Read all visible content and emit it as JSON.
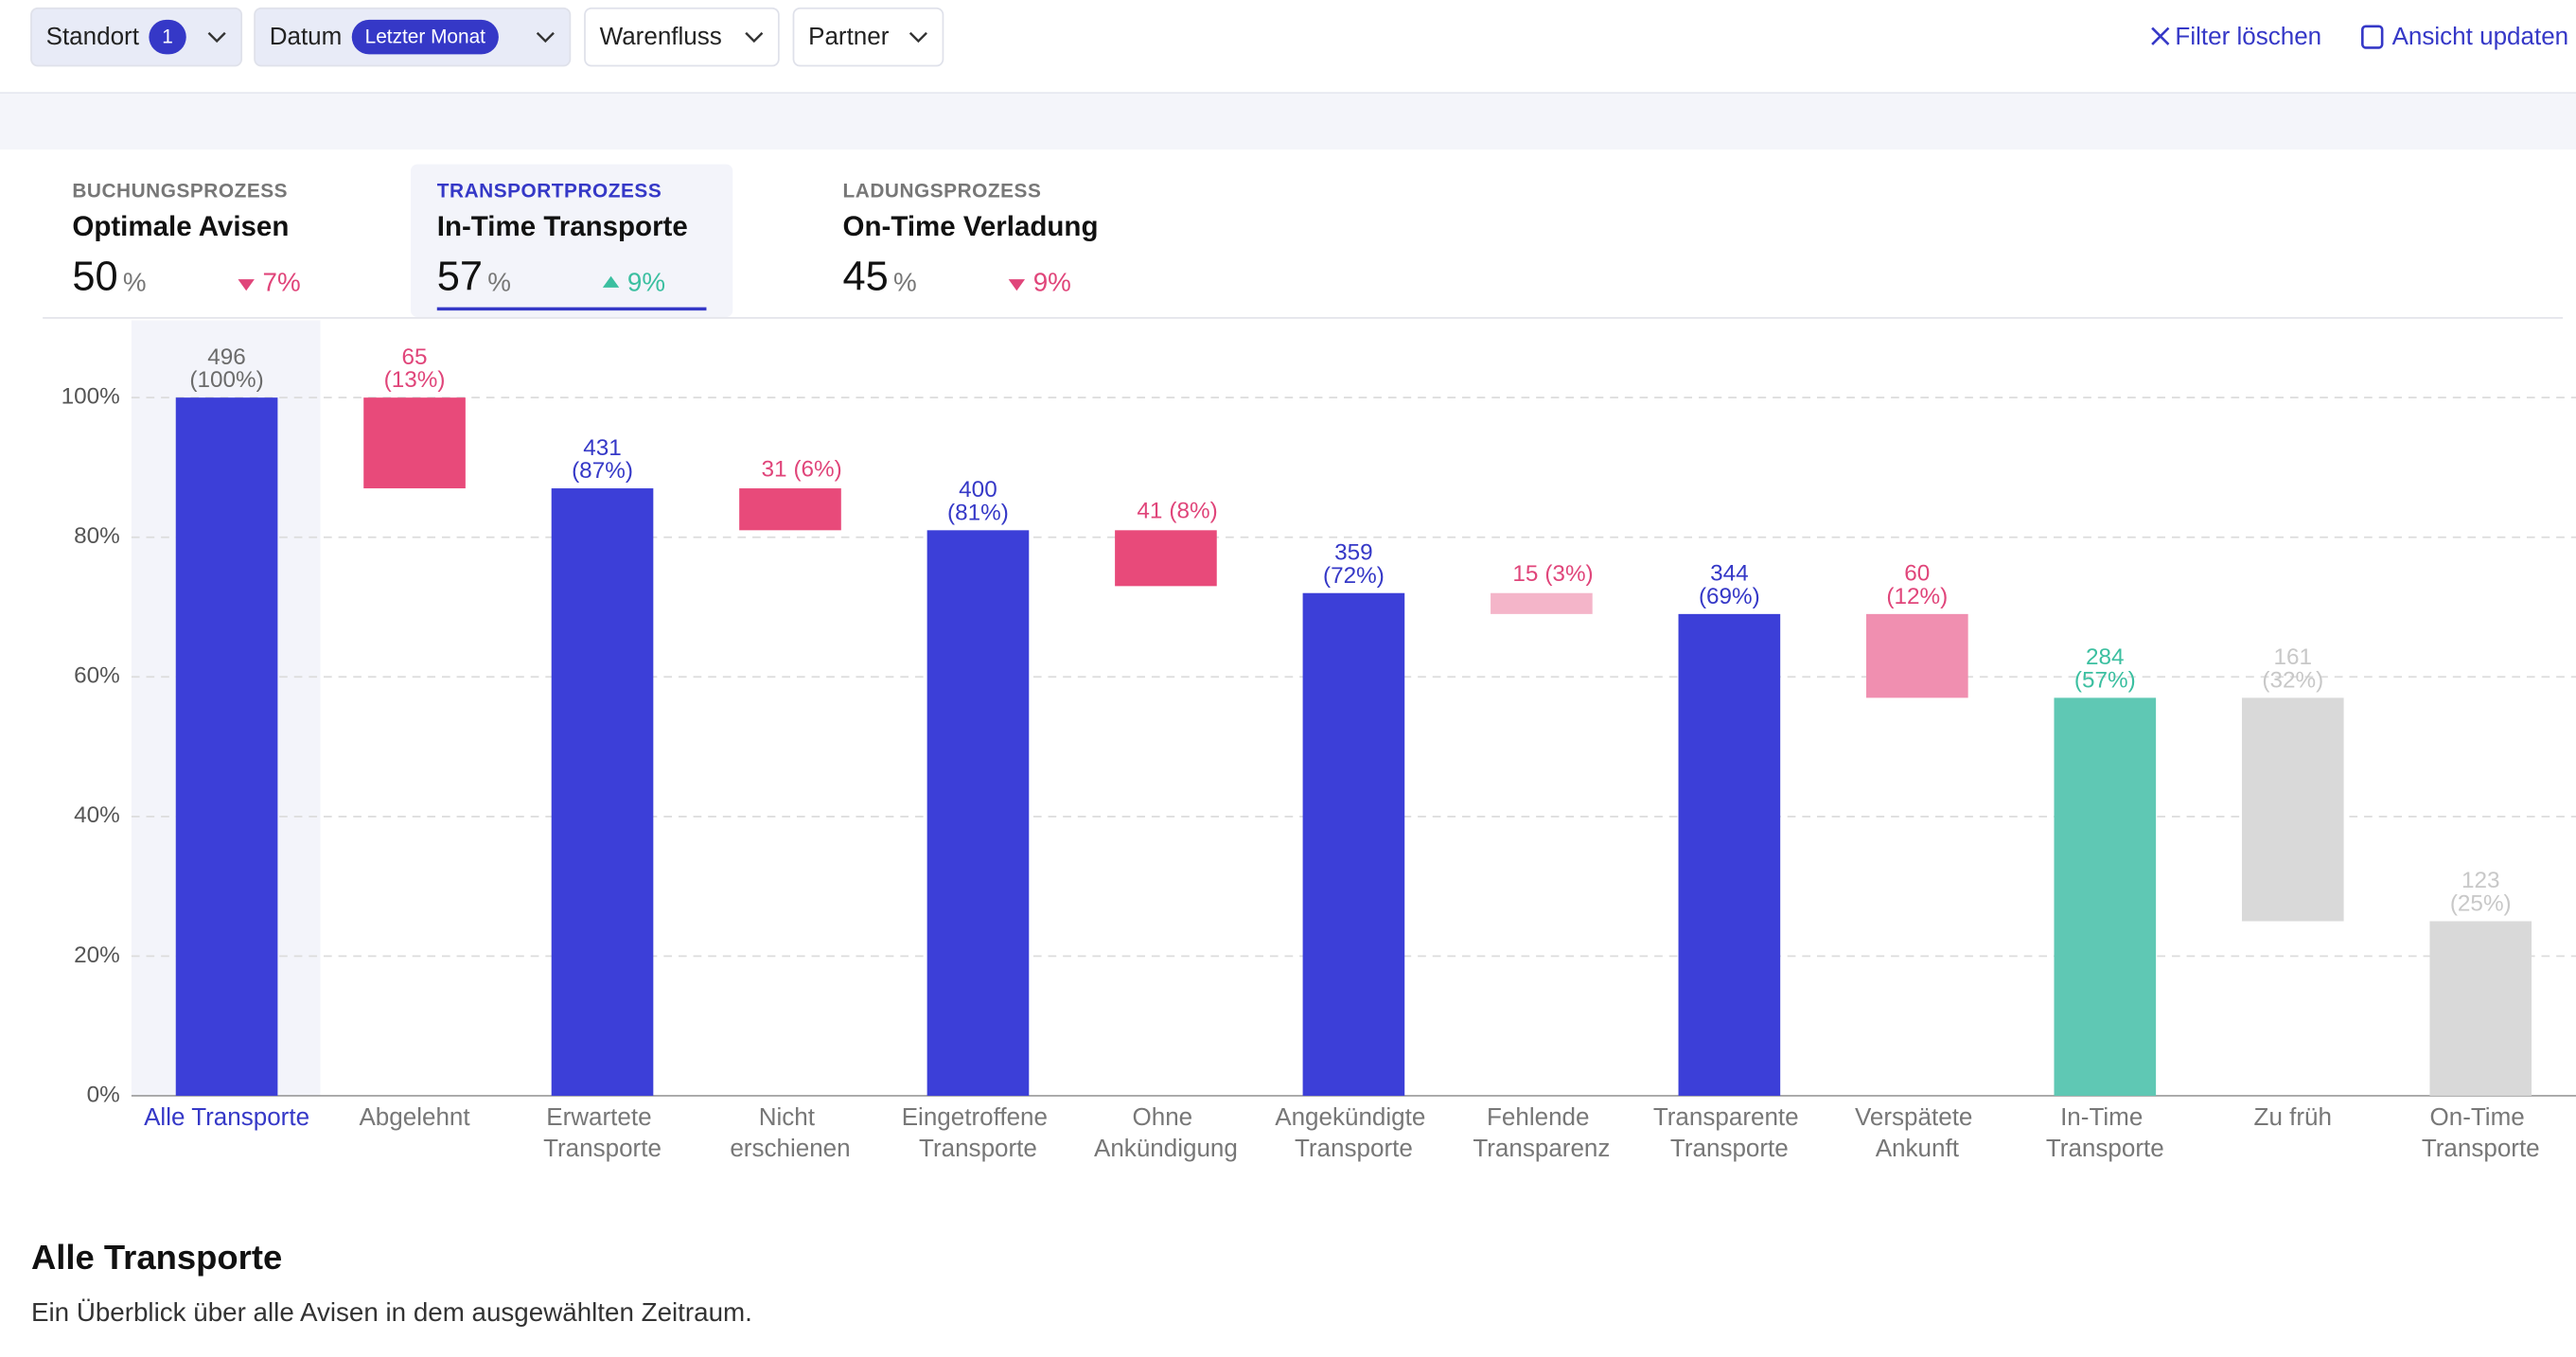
{
  "filters": [
    {
      "label": "Standort",
      "badge": "1"
    },
    {
      "label": "Datum",
      "badge": "Letzter Monat"
    },
    {
      "label": "Warenfluss"
    },
    {
      "label": "Partner"
    }
  ],
  "actions": [
    "Filter löschen",
    "Ansicht updaten"
  ],
  "tabs": [
    {
      "category": "BUCHUNGSPROZESS",
      "title": "Optimale Avisen",
      "value": 50,
      "unit": "%",
      "change": "7%",
      "direction": "down"
    },
    {
      "category": "TRANSPORTPROZESS",
      "title": "In-Time Transporte",
      "value": 57,
      "unit": "%",
      "change": "9%",
      "direction": "up"
    },
    {
      "category": "LADUNGSPROZESS",
      "title": "On-Time Verladung",
      "value": 45,
      "unit": "%",
      "change": "9%",
      "direction": "down"
    }
  ],
  "active_tab": 1,
  "chart_data": {
    "type": "waterfall",
    "categories": [
      "Alle Transporte",
      "Abgelehnt",
      "Erwartete Transporte",
      "Nicht erschienen",
      "Eingetroffene Transporte",
      "Ohne Ankündigung",
      "Angekündigte Transporte",
      "Fehlende Transparenz",
      "Transparente Transporte",
      "Verspätete Ankunft",
      "In-Time Transporte",
      "Zu früh",
      "On-Time Transporte"
    ],
    "measures": [
      "total",
      "relative",
      "total",
      "relative",
      "total",
      "relative",
      "total",
      "relative",
      "total",
      "relative",
      "total",
      "relative",
      "total"
    ],
    "values": [
      100,
      13,
      87,
      6,
      81,
      8,
      72,
      3,
      69,
      12,
      57,
      32,
      25
    ],
    "value_labels": [
      "(100%)",
      "(13%)",
      "(87%)",
      "(6%)",
      "(81%)",
      "(8%)",
      "(72%)",
      "(3%)",
      "(69%)",
      "(12%)",
      "(57%)",
      "(32%)",
      "(25%)"
    ],
    "counts": [
      496,
      65,
      431,
      31,
      400,
      41,
      359,
      15,
      344,
      60,
      284,
      161,
      123
    ],
    "colors": [
      "#3c3fd8",
      "#e84a7a",
      "#3c3fd8",
      "#e84a7a",
      "#3c3fd8",
      "#e84a7a",
      "#3c3fd8",
      "#f4b5c9",
      "#3c3fd8",
      "#f08fb0",
      "#5fc8b4",
      "#d9d9d9",
      "#d9d9d9"
    ],
    "label_colors": [
      "#6b6b6b",
      "#e0457a",
      "#3538c7",
      "#e0457a",
      "#3538c7",
      "#e0457a",
      "#3538c7",
      "#e0457a",
      "#3538c7",
      "#e0457a",
      "#3bbfa0",
      "#c8c8c8",
      "#c8c8c8"
    ],
    "selected": 0,
    "ylim": [
      0,
      100
    ],
    "yticks": [
      {
        "value": 0,
        "label": "0%"
      },
      {
        "value": 20,
        "label": "20%"
      },
      {
        "value": 40,
        "label": "40%"
      },
      {
        "value": 60,
        "label": "60%"
      },
      {
        "value": 80,
        "label": "80%"
      },
      {
        "value": 100,
        "label": "100%"
      }
    ],
    "grid": true
  },
  "section": {
    "title": "Alle Transporte",
    "description": "Ein Überblick über alle Avisen in dem ausgewählten Zeitraum."
  }
}
